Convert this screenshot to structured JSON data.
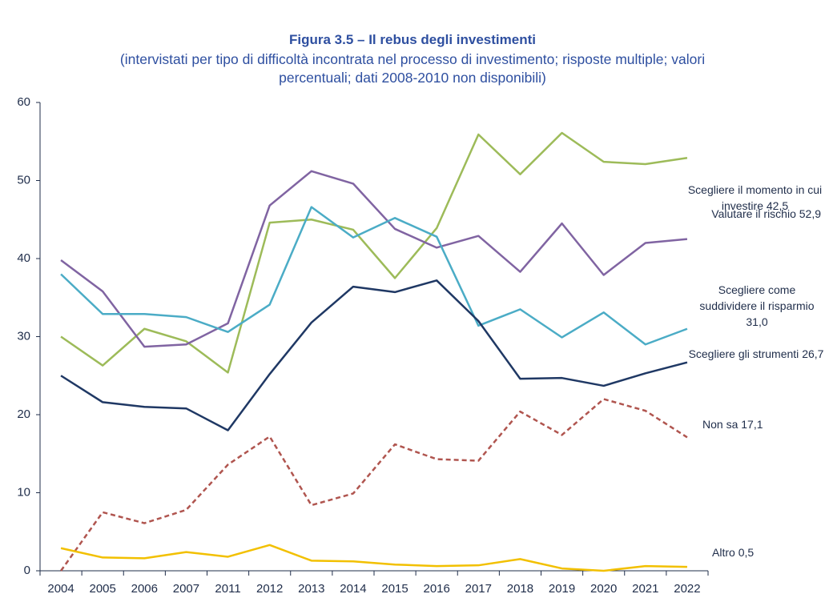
{
  "chart_data": {
    "type": "line",
    "title": "Figura 3.5 – Il rebus degli investimenti",
    "subtitle": "(intervistati per tipo di difficoltà incontrata nel processo di investimento; risposte multiple; valori percentuali; dati 2008-2010 non disponibili)",
    "categories": [
      "2004",
      "2005",
      "2006",
      "2007",
      "2011",
      "2012",
      "2013",
      "2014",
      "2015",
      "2016",
      "2017",
      "2018",
      "2019",
      "2020",
      "2021",
      "2022"
    ],
    "ylim": [
      0,
      60
    ],
    "yticks": [
      0,
      10,
      20,
      30,
      40,
      50,
      60
    ],
    "grid": false,
    "series": [
      {
        "name": "Valutare il rischio",
        "color": "#9dbb59",
        "dash": false,
        "values": [
          30,
          26.3,
          31,
          29.4,
          25.4,
          44.6,
          45,
          43.7,
          37.5,
          43.9,
          55.9,
          50.8,
          56.1,
          52.4,
          52.1,
          52.9
        ],
        "value_labels": [
          null,
          null,
          null,
          null,
          null,
          null,
          null,
          null,
          null,
          null,
          null,
          null,
          null,
          null,
          null,
          "52,9"
        ]
      },
      {
        "name": "Scegliere il momento in cui investire",
        "color": "#8064a2",
        "dash": false,
        "values": [
          39.8,
          35.8,
          28.7,
          29.0,
          31.7,
          46.8,
          51.2,
          49.6,
          43.8,
          41.4,
          42.9,
          38.3,
          44.5,
          37.9,
          42.0,
          42.5
        ],
        "value_labels": [
          null,
          null,
          null,
          null,
          null,
          null,
          null,
          null,
          null,
          null,
          null,
          null,
          null,
          null,
          null,
          "42,5"
        ]
      },
      {
        "name": "Scegliere come suddividere il risparmio",
        "color": "#4bacc6",
        "dash": false,
        "values": [
          38.0,
          32.9,
          32.9,
          32.5,
          30.6,
          34.1,
          46.6,
          42.7,
          45.2,
          42.8,
          31.4,
          33.5,
          29.9,
          33.1,
          29.0,
          31.0
        ],
        "value_labels": [
          null,
          null,
          null,
          null,
          null,
          null,
          null,
          null,
          null,
          null,
          null,
          null,
          null,
          null,
          null,
          "31,0"
        ]
      },
      {
        "name": "Scegliere gli strumenti",
        "color": "#1f3864",
        "dash": false,
        "values": [
          25.0,
          21.6,
          21.0,
          20.8,
          18.0,
          25.2,
          31.8,
          36.4,
          35.7,
          37.2,
          32.0,
          24.6,
          24.7,
          23.7,
          25.3,
          26.7
        ],
        "value_labels": [
          null,
          null,
          null,
          null,
          null,
          null,
          null,
          null,
          null,
          null,
          null,
          null,
          null,
          null,
          null,
          "26,7"
        ]
      },
      {
        "name": "Non sa",
        "color": "#b0554f",
        "dash": true,
        "values": [
          0,
          7.5,
          6.1,
          7.8,
          13.6,
          17.2,
          8.4,
          9.9,
          16.2,
          14.3,
          14.1,
          20.4,
          17.4,
          22.0,
          20.5,
          17.1
        ],
        "value_labels": [
          null,
          null,
          null,
          null,
          null,
          null,
          null,
          null,
          null,
          null,
          null,
          null,
          null,
          null,
          null,
          "17,1"
        ]
      },
      {
        "name": "Altro",
        "color": "#f2c000",
        "dash": false,
        "values": [
          2.9,
          1.7,
          1.6,
          2.4,
          1.8,
          3.3,
          1.3,
          1.2,
          0.8,
          0.6,
          0.7,
          1.5,
          0.3,
          0.0,
          0.6,
          0.5
        ],
        "value_labels": [
          null,
          null,
          null,
          null,
          null,
          null,
          null,
          null,
          null,
          null,
          null,
          null,
          null,
          null,
          null,
          "0,5"
        ]
      }
    ]
  }
}
